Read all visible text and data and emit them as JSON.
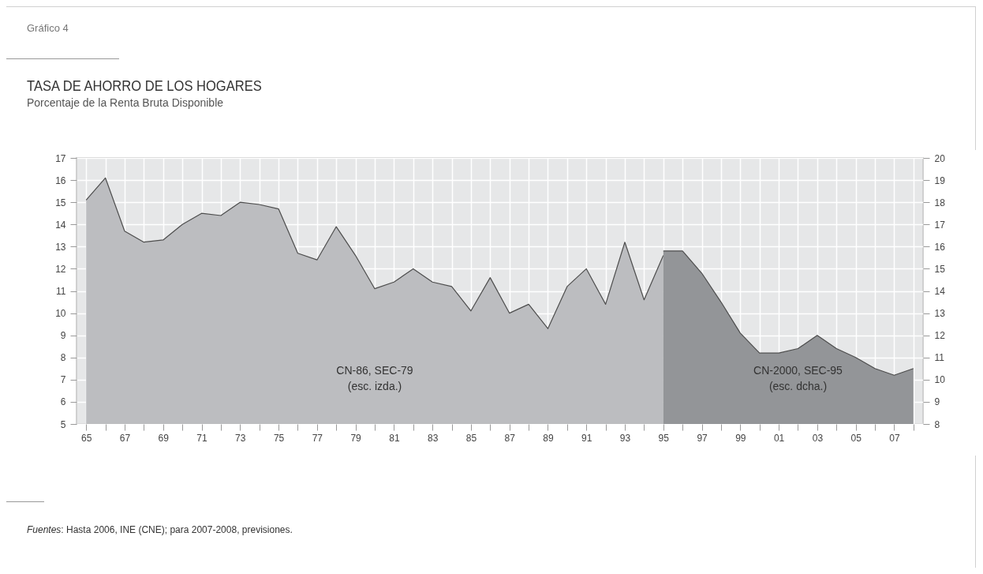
{
  "chart_data": {
    "type": "area",
    "title": "TASA DE AHORRO DE LOS HOGARES",
    "subtitle": "Porcentaje de la Renta Bruta Disponible",
    "annotations": [
      "Gráfico 4",
      "Fuentes: Hasta 2006, INE (CNE); para 2007-2008, previsiones."
    ],
    "categories": [
      "65",
      null,
      "67",
      null,
      "69",
      null,
      "71",
      null,
      "73",
      null,
      "75",
      null,
      "77",
      null,
      "79",
      null,
      "81",
      null,
      "83",
      null,
      "85",
      null,
      "87",
      null,
      "89",
      null,
      "91",
      null,
      "93",
      null,
      "95",
      null,
      "97",
      null,
      "99",
      null,
      "01",
      null,
      "03",
      null,
      "05",
      null,
      "07",
      null
    ],
    "series": [
      {
        "name": "CN-86, SEC-79\n(esc. izda.)",
        "color": "#bcbdc0",
        "values": [
          15.1,
          16.1,
          13.7,
          13.2,
          13.3,
          14.0,
          14.5,
          14.4,
          15.0,
          14.9,
          14.7,
          12.7,
          12.4,
          13.9,
          12.6,
          11.1,
          11.4,
          12.0,
          11.4,
          11.2,
          10.1,
          11.6,
          10.0,
          10.4,
          9.3,
          11.2,
          12.0,
          10.4,
          13.2,
          10.6,
          12.6,
          null,
          null,
          null,
          null,
          null,
          null,
          null,
          null,
          null,
          null,
          null,
          null,
          null
        ]
      },
      {
        "name": "CN-2000, SEC-95\n(esc. dcha.)",
        "color": "#939598",
        "axis": "y2",
        "values": [
          null,
          null,
          null,
          null,
          null,
          null,
          null,
          null,
          null,
          null,
          null,
          null,
          null,
          null,
          null,
          null,
          null,
          null,
          null,
          null,
          null,
          null,
          null,
          null,
          null,
          null,
          null,
          null,
          null,
          null,
          15.8,
          15.8,
          14.8,
          13.5,
          12.1,
          11.2,
          11.2,
          11.4,
          12.0,
          11.4,
          11.0,
          10.5,
          10.2,
          10.5
        ]
      }
    ],
    "ylim": [
      5,
      17
    ],
    "yticks": [
      5,
      6,
      7,
      8,
      9,
      10,
      11,
      12,
      13,
      14,
      15,
      16,
      17
    ],
    "y2lim": [
      8,
      20
    ],
    "y2ticks": [
      8,
      9,
      10,
      11,
      12,
      13,
      14,
      15,
      16,
      17,
      18,
      19,
      20
    ],
    "grid": true
  }
}
